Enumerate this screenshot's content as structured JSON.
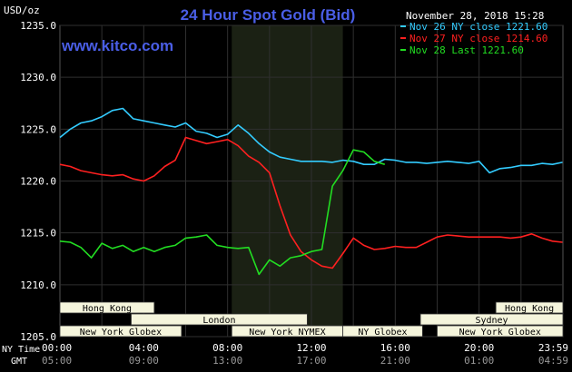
{
  "chart_data": {
    "type": "line",
    "title": "24 Hour Spot Gold (Bid)",
    "watermark": "www.kitco.com",
    "timestamp": "November 28, 2018 15:28",
    "ylabel": "USD/oz",
    "ylim": [
      1205.0,
      1235.0
    ],
    "y_ticks": [
      "1205.0",
      "1210.0",
      "1215.0",
      "1220.0",
      "1225.0",
      "1230.0",
      "1235.0"
    ],
    "x_ticks_ny": [
      "00:00",
      "04:00",
      "08:00",
      "12:00",
      "16:00",
      "20:00",
      "23:59"
    ],
    "x_ticks_gmt": [
      "05:00",
      "09:00",
      "13:00",
      "17:00",
      "21:00",
      "01:00",
      "04:59"
    ],
    "x_row_labels": {
      "ny": "NY Time",
      "gmt": "GMT"
    },
    "legend_position": "top-right",
    "grid": true,
    "colors": {
      "background": "#000000",
      "plot_background": "#000000",
      "shaded_band": "#1b2114",
      "grid": "#2f2f2f",
      "title": "#4a5ee6",
      "watermark": "#4a5ee6",
      "axis_text": "#ffffff",
      "session_fill": "#f5f5dc"
    },
    "shaded_session": {
      "start_hour": 8.2,
      "end_hour": 13.5
    },
    "sessions": [
      {
        "label": "Hong Kong",
        "start_hour": 0.0,
        "end_hour": 4.5,
        "row": 0
      },
      {
        "label": "Hong Kong",
        "start_hour": 20.8,
        "end_hour": 24.0,
        "row": 0
      },
      {
        "label": "London",
        "start_hour": 3.4,
        "end_hour": 11.8,
        "row": 1
      },
      {
        "label": "Sydney",
        "start_hour": 17.2,
        "end_hour": 24.0,
        "row": 1
      },
      {
        "label": "New York Globex",
        "start_hour": 0.0,
        "end_hour": 5.8,
        "row": 2
      },
      {
        "label": "New York NYMEX",
        "start_hour": 8.2,
        "end_hour": 13.5,
        "row": 2
      },
      {
        "label": "NY Globex",
        "start_hour": 13.5,
        "end_hour": 17.3,
        "row": 2
      },
      {
        "label": "New York Globex",
        "start_hour": 18.0,
        "end_hour": 24.0,
        "row": 2
      }
    ],
    "series": [
      {
        "name": "Nov 26 NY close 1221.60",
        "color": "#33ccff",
        "x": [
          0,
          0.5,
          1,
          1.5,
          2,
          2.5,
          3,
          3.5,
          4,
          4.5,
          5,
          5.5,
          6,
          6.5,
          7,
          7.5,
          8,
          8.5,
          9,
          9.5,
          10,
          10.5,
          11,
          11.5,
          12,
          12.5,
          13,
          13.5,
          14,
          14.5,
          15,
          15.5,
          16,
          16.5,
          17,
          17.5,
          18,
          18.5,
          19,
          19.5,
          20,
          20.5,
          21,
          21.5,
          22,
          22.5,
          23,
          23.5,
          23.98
        ],
        "y": [
          1224.2,
          1225.0,
          1225.6,
          1225.8,
          1226.2,
          1226.8,
          1227.0,
          1226.0,
          1225.8,
          1225.6,
          1225.4,
          1225.2,
          1225.6,
          1224.8,
          1224.6,
          1224.2,
          1224.5,
          1225.4,
          1224.6,
          1223.6,
          1222.8,
          1222.3,
          1222.1,
          1221.9,
          1221.9,
          1221.9,
          1221.8,
          1222.0,
          1221.9,
          1221.6,
          1221.6,
          1222.1,
          1222.0,
          1221.8,
          1221.8,
          1221.7,
          1221.8,
          1221.9,
          1221.8,
          1221.7,
          1221.9,
          1220.8,
          1221.2,
          1221.3,
          1221.5,
          1221.5,
          1221.7,
          1221.6,
          1221.8
        ]
      },
      {
        "name": "Nov 27 NY close 1214.60",
        "color": "#ff2020",
        "x": [
          0,
          0.5,
          1,
          1.5,
          2,
          2.5,
          3,
          3.5,
          4,
          4.5,
          5,
          5.5,
          6,
          6.5,
          7,
          7.5,
          8,
          8.5,
          9,
          9.5,
          10,
          10.5,
          11,
          11.5,
          12,
          12.5,
          13,
          13.5,
          14,
          14.5,
          15,
          15.5,
          16,
          16.5,
          17,
          17.5,
          18,
          18.5,
          19,
          19.5,
          20,
          20.5,
          21,
          21.5,
          22,
          22.5,
          23,
          23.5,
          23.98
        ],
        "y": [
          1221.6,
          1221.4,
          1221.0,
          1220.8,
          1220.6,
          1220.5,
          1220.6,
          1220.2,
          1220.0,
          1220.5,
          1221.4,
          1222.0,
          1224.2,
          1223.9,
          1223.6,
          1223.8,
          1224.0,
          1223.4,
          1222.4,
          1221.8,
          1220.8,
          1217.6,
          1214.8,
          1213.2,
          1212.4,
          1211.8,
          1211.6,
          1213.0,
          1214.5,
          1213.8,
          1213.4,
          1213.5,
          1213.7,
          1213.6,
          1213.6,
          1214.1,
          1214.6,
          1214.8,
          1214.7,
          1214.6,
          1214.6,
          1214.6,
          1214.6,
          1214.5,
          1214.6,
          1214.9,
          1214.5,
          1214.2,
          1214.1
        ]
      },
      {
        "name": "Nov 28 Last 1221.60",
        "color": "#22dd22",
        "x": [
          0,
          0.5,
          1,
          1.5,
          2,
          2.5,
          3,
          3.5,
          4,
          4.5,
          5,
          5.5,
          6,
          6.5,
          7,
          7.5,
          8,
          8.5,
          9,
          9.5,
          10,
          10.5,
          11,
          11.5,
          12,
          12.5,
          13,
          13.5,
          14,
          14.5,
          15,
          15.5
        ],
        "y": [
          1214.2,
          1214.1,
          1213.6,
          1212.6,
          1214.0,
          1213.5,
          1213.8,
          1213.2,
          1213.6,
          1213.2,
          1213.6,
          1213.8,
          1214.5,
          1214.6,
          1214.8,
          1213.8,
          1213.6,
          1213.5,
          1213.6,
          1211.0,
          1212.4,
          1211.8,
          1212.6,
          1212.8,
          1213.2,
          1213.4,
          1219.5,
          1221.0,
          1223.0,
          1222.8,
          1221.9,
          1221.6
        ]
      }
    ]
  }
}
